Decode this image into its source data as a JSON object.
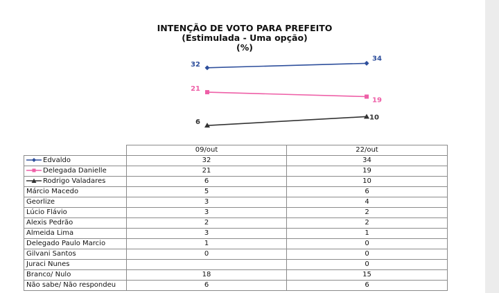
{
  "chart_data": {
    "type": "line",
    "title": "INTENÇÃO DE VOTO PARA PREFEITO",
    "subtitle": "(Estimulada - Uma opção)",
    "unit": "(%)",
    "categories": [
      "09/out",
      "22/out"
    ],
    "series": [
      {
        "name": "Edvaldo",
        "values": [
          32,
          34
        ],
        "color": "#2e4f9c",
        "marker": "diamond"
      },
      {
        "name": "Delegada Danielle",
        "values": [
          21,
          19
        ],
        "color": "#ee5fa7",
        "marker": "square"
      },
      {
        "name": "Rodrigo Valadares",
        "values": [
          6,
          10
        ],
        "color": "#333333",
        "marker": "triangle"
      }
    ],
    "table_rows": [
      {
        "name": "Edvaldo",
        "values": [
          "32",
          "34"
        ],
        "legend": "diamond",
        "color": "#2e4f9c"
      },
      {
        "name": "Delegada Danielle",
        "values": [
          "21",
          "19"
        ],
        "legend": "square",
        "color": "#ee5fa7"
      },
      {
        "name": "Rodrigo Valadares",
        "values": [
          "6",
          "10"
        ],
        "legend": "triangle",
        "color": "#333333"
      },
      {
        "name": "Márcio Macedo",
        "values": [
          "5",
          "6"
        ]
      },
      {
        "name": "Georlize",
        "values": [
          "3",
          "4"
        ]
      },
      {
        "name": "Lúcio Flávio",
        "values": [
          "3",
          "2"
        ]
      },
      {
        "name": "Alexis Pedrão",
        "values": [
          "2",
          "2"
        ]
      },
      {
        "name": "Almeida Lima",
        "values": [
          "3",
          "1"
        ]
      },
      {
        "name": "Delegado Paulo Marcio",
        "values": [
          "1",
          "0"
        ]
      },
      {
        "name": "Gilvani Santos",
        "values": [
          "0",
          "0"
        ]
      },
      {
        "name": "Juraci Nunes",
        "values": [
          "",
          "0"
        ]
      },
      {
        "name": "Branco/ Nulo",
        "values": [
          "18",
          "15"
        ]
      },
      {
        "name": "Não sabe/ Não respondeu",
        "values": [
          "6",
          "6"
        ]
      }
    ]
  }
}
